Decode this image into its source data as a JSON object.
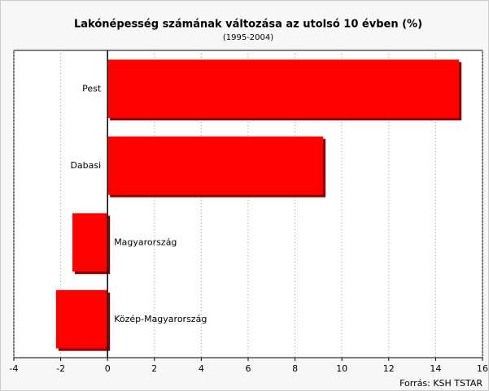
{
  "chart_data": {
    "type": "hbar",
    "title": "Lakónépesség számának változása az utolsó 10 évben (%)",
    "subtitle": "(1995-2004)",
    "source": "Forrás: KSH TSTAR",
    "categories": [
      "Pest",
      "Dabasi",
      "Magyarország",
      "Közép-Magyarország"
    ],
    "values": [
      15.0,
      9.2,
      -1.5,
      -2.2
    ],
    "color": "#ff0000",
    "xlim": [
      -4,
      16
    ],
    "xticks": [
      -4,
      -2,
      0,
      2,
      4,
      6,
      8,
      10,
      12,
      14,
      16
    ],
    "grid": true
  }
}
